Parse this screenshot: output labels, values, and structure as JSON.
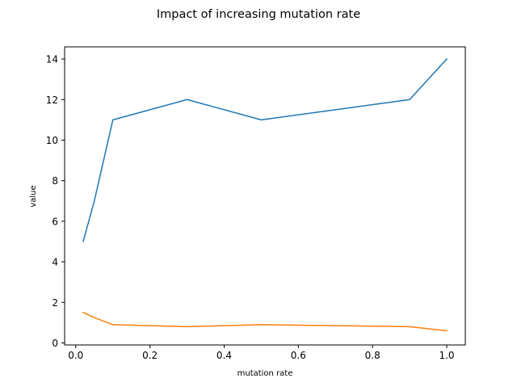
{
  "chart_data": {
    "type": "line",
    "title": "Impact of increasing mutation rate",
    "xlabel": "mutation rate",
    "ylabel": "value",
    "xlim": [
      -0.03,
      1.05
    ],
    "ylim": [
      -0.1,
      14.6
    ],
    "x": [
      0.02,
      0.05,
      0.1,
      0.3,
      0.5,
      0.9,
      1.0
    ],
    "xticks": [
      "0.0",
      "0.2",
      "0.4",
      "0.6",
      "0.8",
      "1.0"
    ],
    "yticks": [
      "0",
      "2",
      "4",
      "6",
      "8",
      "10",
      "12",
      "14"
    ],
    "grid": false,
    "series": [
      {
        "color": "#1f77b4",
        "values": [
          5,
          7,
          11,
          12,
          11,
          12,
          14
        ]
      },
      {
        "color": "#ff7f0e",
        "values": [
          1.5,
          1.25,
          0.9,
          0.8,
          0.9,
          0.8,
          0.6
        ]
      }
    ]
  }
}
